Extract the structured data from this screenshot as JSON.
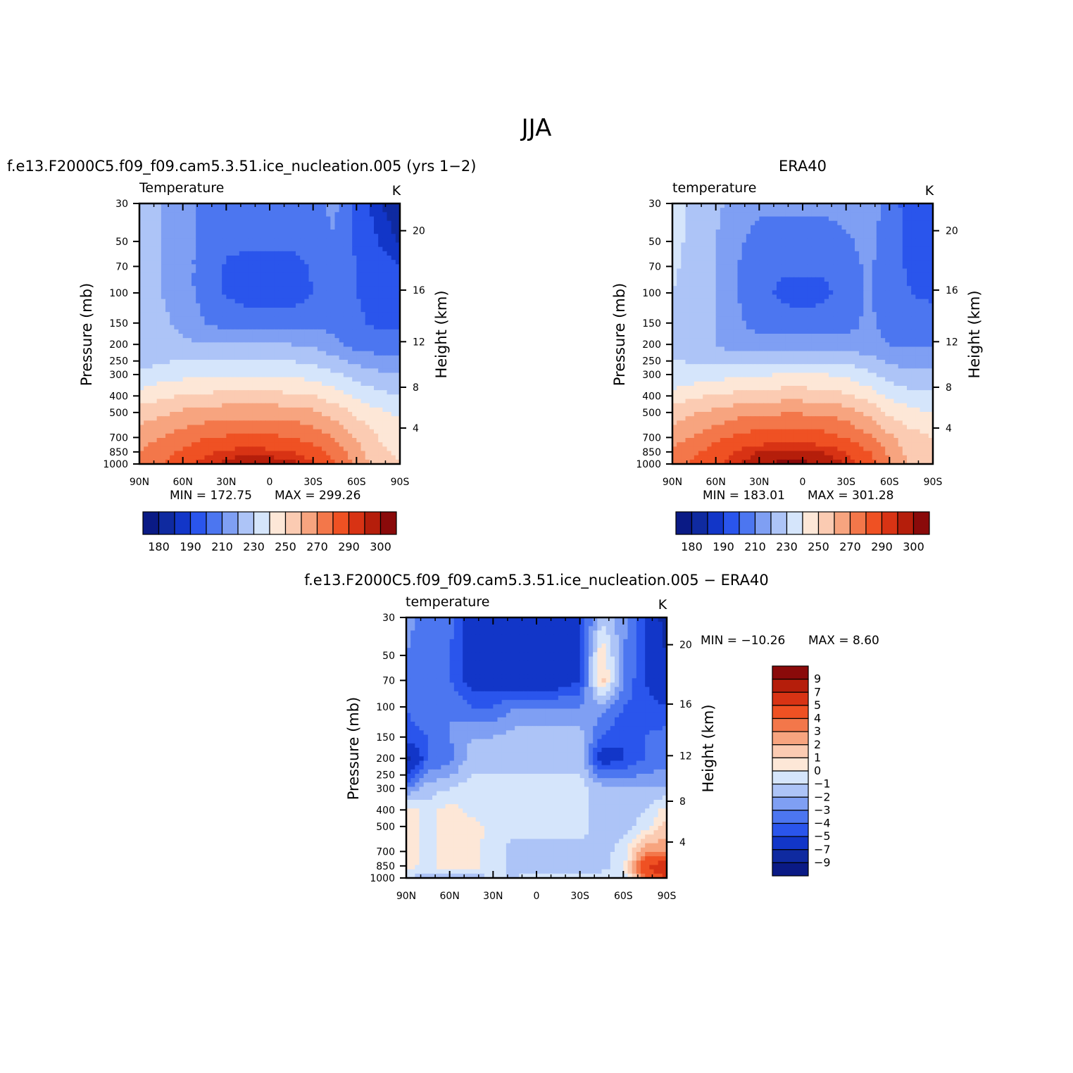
{
  "figure": {
    "title": "JJA"
  },
  "colors": {
    "temperature_levels": [
      "#0a1a85",
      "#0f2aa0",
      "#1236c8",
      "#2a55ec",
      "#4c76f0",
      "#7f9ff3",
      "#adc4f7",
      "#d5e5fb",
      "#fde7d7",
      "#fbcbb2",
      "#f7a47f",
      "#f3774a",
      "#ef5123",
      "#d83314",
      "#b51e0b",
      "#8a0a0a"
    ],
    "diff_levels": [
      "#0a1a85",
      "#0f2aa0",
      "#1236c8",
      "#2a55ec",
      "#4c76f0",
      "#7f9ff3",
      "#adc4f7",
      "#d5e5fb",
      "#fde7d7",
      "#fbcbb2",
      "#f7a47f",
      "#f3774a",
      "#ef5123",
      "#d83314",
      "#b51e0b",
      "#8a0a0a"
    ]
  },
  "chart_data": [
    {
      "id": "model",
      "type": "heatmap",
      "title": "f.e13.F2000C5.f09_f09.cam5.3.51.ice_nucleation.005 (yrs 1−2)",
      "subtitle": "Temperature",
      "units": "K",
      "ylabel": "Pressure (mb)",
      "y2label": "Height (km)",
      "x_ticks": [
        "90N",
        "60N",
        "30N",
        "0",
        "30S",
        "60S",
        "90S"
      ],
      "x_values": [
        90,
        60,
        30,
        0,
        -30,
        -60,
        -90
      ],
      "y_ticks": [
        30,
        50,
        70,
        100,
        150,
        200,
        250,
        300,
        400,
        500,
        700,
        850,
        1000
      ],
      "y2_ticks": [
        20,
        16,
        12,
        8,
        4
      ],
      "min_label": "MIN = 172.75",
      "max_label": "MAX = 299.26",
      "min": 172.75,
      "max": 299.26,
      "colorbar_labels": [
        "180",
        "190",
        "210",
        "230",
        "250",
        "270",
        "290",
        "300"
      ],
      "field": {
        "lat": [
          90,
          75,
          60,
          45,
          30,
          15,
          0,
          -15,
          -30,
          -45,
          -60,
          -75,
          -90
        ],
        "plev": [
          30,
          50,
          70,
          100,
          150,
          200,
          300,
          400,
          500,
          700,
          850,
          1000
        ],
        "values": [
          [
            226,
            220,
            214,
            208,
            206,
            206,
            206,
            206,
            208,
            212,
            196,
            186,
            180
          ],
          [
            225,
            220,
            214,
            206,
            202,
            202,
            202,
            202,
            204,
            210,
            198,
            190,
            184
          ],
          [
            224,
            220,
            214,
            206,
            199,
            197,
            197,
            197,
            201,
            208,
            200,
            194,
            190
          ],
          [
            224,
            220,
            214,
            206,
            199,
            196,
            196,
            196,
            200,
            208,
            200,
            196,
            194
          ],
          [
            224,
            222,
            218,
            210,
            206,
            204,
            204,
            204,
            206,
            208,
            202,
            198,
            198
          ],
          [
            222,
            222,
            222,
            220,
            220,
            220,
            220,
            220,
            218,
            212,
            206,
            204,
            204
          ],
          [
            231,
            235,
            237,
            238,
            238,
            238,
            238,
            238,
            236,
            232,
            226,
            222,
            220
          ],
          [
            244,
            248,
            251,
            252,
            253,
            253,
            253,
            252,
            250,
            245,
            238,
            233,
            230
          ],
          [
            255,
            258,
            262,
            264,
            266,
            266,
            266,
            265,
            262,
            256,
            248,
            242,
            238
          ],
          [
            266,
            270,
            275,
            279,
            281,
            282,
            282,
            280,
            276,
            269,
            259,
            250,
            246
          ],
          [
            270,
            276,
            282,
            288,
            292,
            293,
            292,
            290,
            285,
            276,
            264,
            252,
            248
          ],
          [
            272,
            280,
            286,
            293,
            297,
            299,
            299,
            297,
            291,
            281,
            268,
            254,
            250
          ]
        ]
      }
    },
    {
      "id": "era40",
      "type": "heatmap",
      "title": "ERA40",
      "subtitle": "temperature",
      "units": "K",
      "ylabel": "Pressure (mb)",
      "y2label": "Height (km)",
      "x_ticks": [
        "90N",
        "60N",
        "30N",
        "0",
        "30S",
        "60S",
        "90S"
      ],
      "x_values": [
        90,
        60,
        30,
        0,
        -30,
        -60,
        -90
      ],
      "y_ticks": [
        30,
        50,
        70,
        100,
        150,
        200,
        250,
        300,
        400,
        500,
        700,
        850,
        1000
      ],
      "y2_ticks": [
        20,
        16,
        12,
        8,
        4
      ],
      "min_label": "MIN = 183.01",
      "max_label": "MAX = 301.28",
      "min": 183.01,
      "max": 301.28,
      "colorbar_labels": [
        "180",
        "190",
        "210",
        "230",
        "250",
        "270",
        "290",
        "300"
      ],
      "field": {
        "lat": [
          90,
          75,
          60,
          45,
          30,
          15,
          0,
          -15,
          -30,
          -45,
          -60,
          -75,
          -90
        ],
        "plev": [
          30,
          50,
          70,
          100,
          150,
          200,
          300,
          400,
          500,
          700,
          850,
          1000
        ],
        "values": [
          [
            236,
            226,
            222,
            216,
            212,
            212,
            212,
            212,
            214,
            218,
            204,
            196,
            192
          ],
          [
            234,
            226,
            220,
            212,
            206,
            206,
            206,
            206,
            208,
            214,
            204,
            196,
            190
          ],
          [
            232,
            226,
            220,
            210,
            203,
            202,
            202,
            202,
            204,
            212,
            204,
            198,
            192
          ],
          [
            230,
            226,
            220,
            210,
            203,
            198,
            196,
            198,
            203,
            212,
            204,
            200,
            198
          ],
          [
            230,
            226,
            220,
            212,
            206,
            204,
            204,
            204,
            206,
            212,
            206,
            204,
            204
          ],
          [
            228,
            224,
            220,
            214,
            214,
            214,
            214,
            214,
            214,
            214,
            210,
            208,
            208
          ],
          [
            232,
            234,
            236,
            238,
            239,
            240,
            240,
            240,
            238,
            232,
            226,
            222,
            222
          ],
          [
            244,
            248,
            251,
            253,
            255,
            256,
            256,
            255,
            252,
            246,
            238,
            234,
            232
          ],
          [
            255,
            259,
            263,
            266,
            268,
            269,
            269,
            268,
            265,
            258,
            248,
            242,
            240
          ],
          [
            266,
            271,
            277,
            282,
            285,
            286,
            286,
            284,
            279,
            272,
            262,
            254,
            250
          ],
          [
            272,
            278,
            285,
            291,
            295,
            297,
            297,
            295,
            290,
            281,
            268,
            256,
            250
          ],
          [
            274,
            282,
            288,
            295,
            299,
            301,
            301,
            299,
            295,
            285,
            272,
            258,
            252
          ]
        ]
      }
    },
    {
      "id": "diff",
      "type": "heatmap",
      "title": "f.e13.F2000C5.f09_f09.cam5.3.51.ice_nucleation.005 − ERA40",
      "subtitle": "temperature",
      "units": "K",
      "ylabel": "Pressure (mb)",
      "y2label": "Height (km)",
      "x_ticks": [
        "90N",
        "60N",
        "30N",
        "0",
        "30S",
        "60S",
        "90S"
      ],
      "x_values": [
        90,
        60,
        30,
        0,
        -30,
        -60,
        -90
      ],
      "y_ticks": [
        30,
        50,
        70,
        100,
        150,
        200,
        250,
        300,
        400,
        500,
        700,
        850,
        1000
      ],
      "y2_ticks": [
        20,
        16,
        12,
        8,
        4
      ],
      "min_label": "MIN = −10.26",
      "max_label": "MAX = 8.60",
      "min": -10.26,
      "max": 8.6,
      "colorbar_labels": [
        "9",
        "7",
        "5",
        "4",
        "3",
        "2",
        "1",
        "0",
        "−1",
        "−2",
        "−3",
        "−4",
        "−5",
        "−7",
        "−9"
      ],
      "field": {
        "lat": [
          90,
          75,
          60,
          45,
          30,
          15,
          0,
          -15,
          -30,
          -45,
          -60,
          -75,
          -90
        ],
        "plev": [
          30,
          50,
          70,
          100,
          150,
          200,
          300,
          400,
          500,
          700,
          850,
          1000
        ],
        "values": [
          [
            -2.5,
            -3.5,
            -3.5,
            -6,
            -6,
            -6,
            -6,
            -6,
            -5,
            -1.5,
            -2.5,
            -5,
            -8
          ],
          [
            -3,
            -4,
            -4,
            -6,
            -6.5,
            -6.5,
            -6.5,
            -6.5,
            -5,
            1,
            -3,
            -5,
            -7
          ],
          [
            -4,
            -3,
            -4,
            -5.5,
            -6,
            -6,
            -6,
            -6,
            -5,
            1.5,
            -3,
            -5,
            -6.5
          ],
          [
            -4,
            -3,
            -3,
            -4,
            -4,
            -3,
            -3,
            -3,
            -3,
            -2.5,
            -4,
            -4.5,
            -5
          ],
          [
            -4.5,
            -4,
            -3,
            -2,
            -2,
            -1.5,
            -1.5,
            -1.5,
            -1.5,
            -4,
            -5,
            -4,
            -3.5
          ],
          [
            -7.5,
            -4,
            -3.5,
            -1.5,
            -1.5,
            -1.5,
            -1.5,
            -1.5,
            -1.5,
            -6,
            -5,
            -4,
            -3.5
          ],
          [
            -3,
            -1.5,
            -1,
            -0.5,
            -0.5,
            -0.5,
            -0.5,
            -0.5,
            -0.5,
            -1.5,
            -2,
            -2,
            -2
          ],
          [
            0.5,
            -0.5,
            0.5,
            -0.5,
            -0.5,
            -0.5,
            -0.5,
            -0.5,
            -0.5,
            -1.5,
            -1.5,
            -1,
            0.5
          ],
          [
            1,
            -0.5,
            0.5,
            0.5,
            -0.3,
            -0.5,
            -0.5,
            -0.5,
            -0.5,
            -1.5,
            -1.5,
            -0.5,
            1.5
          ],
          [
            0.5,
            -0.5,
            0.5,
            0.3,
            -0.5,
            -1.5,
            -1.5,
            -1.5,
            -1.5,
            -1.5,
            -0.5,
            3,
            3
          ],
          [
            0.5,
            -0.5,
            1,
            0.5,
            -0.5,
            -1.5,
            -1.5,
            -1.5,
            -1.5,
            -1.5,
            -0.5,
            5,
            6
          ],
          [
            -1,
            -1.5,
            -1.5,
            -1.5,
            -1,
            -1,
            -0.5,
            -0.5,
            -0.5,
            -0.5,
            -0.5,
            4,
            5
          ]
        ]
      }
    }
  ]
}
